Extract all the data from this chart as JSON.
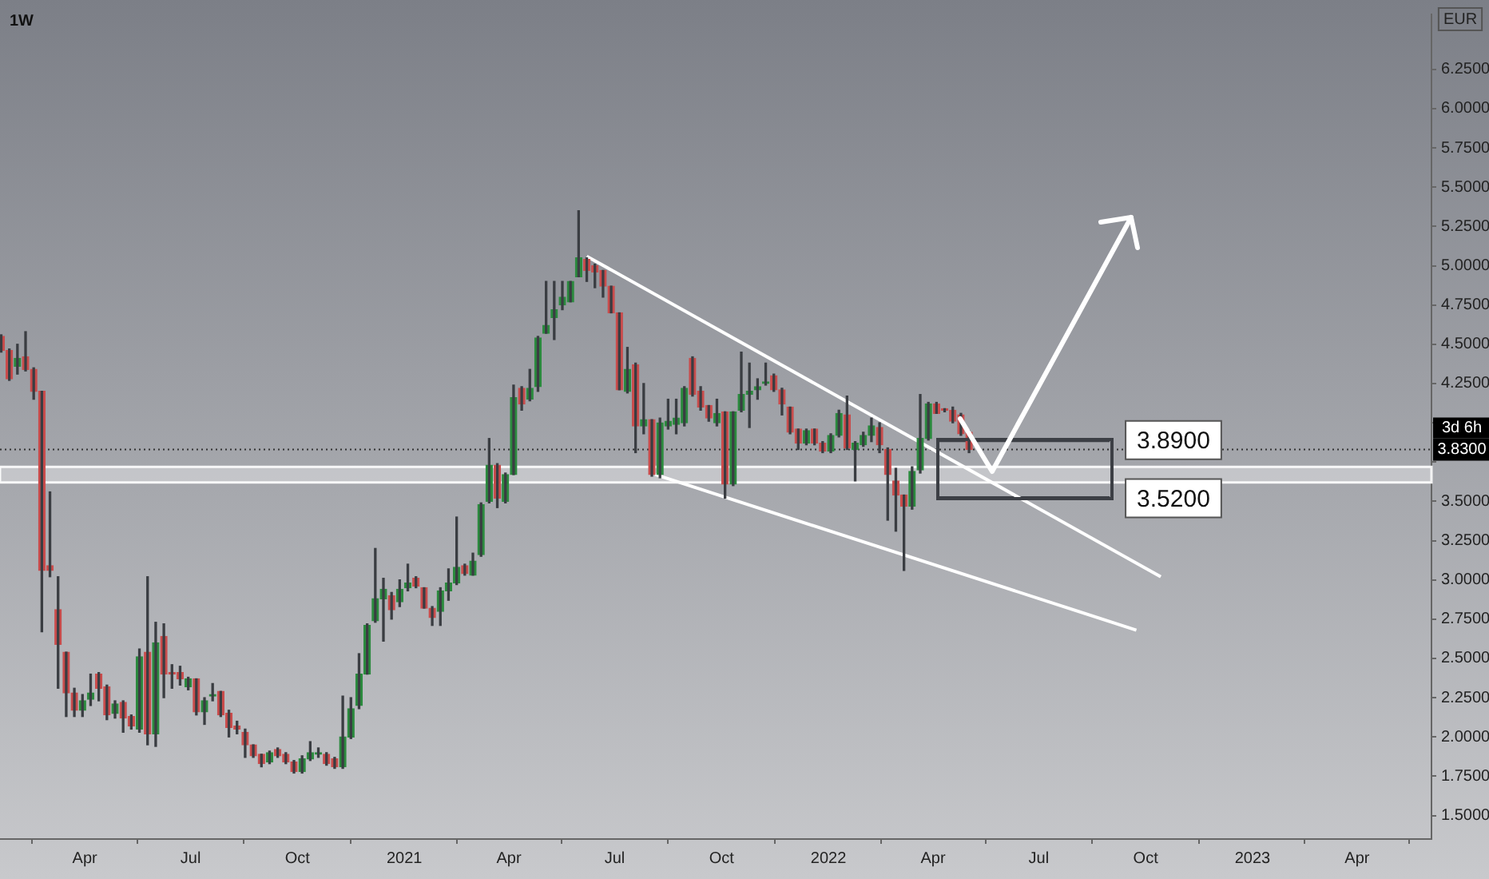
{
  "chart_data": {
    "type": "candlestick",
    "title": "1W",
    "ylabel": "EUR",
    "x": [
      "2020-01-20",
      "2020-01-27",
      "2020-02-03",
      "2020-02-10",
      "2020-02-17",
      "2020-02-24",
      "2020-03-02",
      "2020-03-09",
      "2020-03-16",
      "2020-03-23",
      "2020-03-30",
      "2020-04-06",
      "2020-04-13",
      "2020-04-20",
      "2020-04-27",
      "2020-05-04",
      "2020-05-11",
      "2020-05-18",
      "2020-05-25",
      "2020-06-01",
      "2020-06-08",
      "2020-06-15",
      "2020-06-22",
      "2020-06-29",
      "2020-07-06",
      "2020-07-13",
      "2020-07-20",
      "2020-07-27",
      "2020-08-03",
      "2020-08-10",
      "2020-08-17",
      "2020-08-24",
      "2020-08-31",
      "2020-09-07",
      "2020-09-14",
      "2020-09-21",
      "2020-09-28",
      "2020-10-05",
      "2020-10-12",
      "2020-10-19",
      "2020-10-26",
      "2020-11-02",
      "2020-11-09",
      "2020-11-16",
      "2020-11-23",
      "2020-11-30",
      "2020-12-07",
      "2020-12-14",
      "2020-12-21",
      "2020-12-28",
      "2021-01-04",
      "2021-01-11",
      "2021-01-18",
      "2021-01-25",
      "2021-02-01",
      "2021-02-08",
      "2021-02-15",
      "2021-02-22",
      "2021-03-01",
      "2021-03-08",
      "2021-03-15",
      "2021-03-22",
      "2021-03-29",
      "2021-04-05",
      "2021-04-12",
      "2021-04-19",
      "2021-04-26",
      "2021-05-03",
      "2021-05-10",
      "2021-05-17",
      "2021-05-24",
      "2021-05-31",
      "2021-06-07",
      "2021-06-14",
      "2021-06-21",
      "2021-06-28",
      "2021-07-05",
      "2021-07-12",
      "2021-07-19",
      "2021-07-26",
      "2021-08-02",
      "2021-08-09",
      "2021-08-16",
      "2021-08-23",
      "2021-08-30",
      "2021-09-06",
      "2021-09-13",
      "2021-09-20",
      "2021-09-27",
      "2021-10-04",
      "2021-10-11",
      "2021-10-18",
      "2021-10-25",
      "2021-11-01",
      "2021-11-08",
      "2021-11-15",
      "2021-11-22",
      "2021-11-29",
      "2021-12-06",
      "2021-12-13",
      "2021-12-20",
      "2021-12-27",
      "2022-01-03",
      "2022-01-10",
      "2022-01-17",
      "2022-01-24",
      "2022-01-31",
      "2022-02-07",
      "2022-02-14",
      "2022-02-21",
      "2022-02-28",
      "2022-03-07",
      "2022-03-14",
      "2022-03-21",
      "2022-03-28",
      "2022-04-04",
      "2022-04-11",
      "2022-04-18",
      "2022-04-25",
      "2022-05-02"
    ],
    "ohlc": [
      [
        4.55,
        4.56,
        4.45,
        4.46
      ],
      [
        4.46,
        4.47,
        4.27,
        4.28
      ],
      [
        4.36,
        4.5,
        4.31,
        4.41
      ],
      [
        4.42,
        4.58,
        4.33,
        4.34
      ],
      [
        4.34,
        4.35,
        4.15,
        4.2
      ],
      [
        4.2,
        4.2,
        2.67,
        3.06
      ],
      [
        3.09,
        3.56,
        3.02,
        3.06
      ],
      [
        2.81,
        3.02,
        2.31,
        2.59
      ],
      [
        2.54,
        2.54,
        2.13,
        2.28
      ],
      [
        2.28,
        2.31,
        2.13,
        2.17
      ],
      [
        2.17,
        2.27,
        2.13,
        2.23
      ],
      [
        2.24,
        2.4,
        2.2,
        2.28
      ],
      [
        2.4,
        2.41,
        2.23,
        2.31
      ],
      [
        2.32,
        2.33,
        2.11,
        2.14
      ],
      [
        2.15,
        2.23,
        2.12,
        2.21
      ],
      [
        2.22,
        2.23,
        2.03,
        2.12
      ],
      [
        2.13,
        2.14,
        2.05,
        2.07
      ],
      [
        2.05,
        2.56,
        2.03,
        2.51
      ],
      [
        2.54,
        3.02,
        1.95,
        2.02
      ],
      [
        2.02,
        2.73,
        1.94,
        2.6
      ],
      [
        2.64,
        2.72,
        2.25,
        2.4
      ],
      [
        2.41,
        2.46,
        2.31,
        2.4
      ],
      [
        2.41,
        2.45,
        2.33,
        2.37
      ],
      [
        2.32,
        2.38,
        2.3,
        2.37
      ],
      [
        2.37,
        2.37,
        2.14,
        2.16
      ],
      [
        2.16,
        2.25,
        2.08,
        2.23
      ],
      [
        2.26,
        2.34,
        2.23,
        2.27
      ],
      [
        2.29,
        2.29,
        2.13,
        2.14
      ],
      [
        2.15,
        2.17,
        2.0,
        2.06
      ],
      [
        2.07,
        2.1,
        2.02,
        2.05
      ],
      [
        2.03,
        2.05,
        1.87,
        1.95
      ],
      [
        1.95,
        1.95,
        1.87,
        1.88
      ],
      [
        1.89,
        1.89,
        1.81,
        1.83
      ],
      [
        1.84,
        1.91,
        1.83,
        1.9
      ],
      [
        1.92,
        1.93,
        1.87,
        1.88
      ],
      [
        1.89,
        1.9,
        1.83,
        1.84
      ],
      [
        1.84,
        1.85,
        1.77,
        1.78
      ],
      [
        1.78,
        1.88,
        1.77,
        1.86
      ],
      [
        1.86,
        1.97,
        1.85,
        1.9
      ],
      [
        1.89,
        1.93,
        1.87,
        1.9
      ],
      [
        1.89,
        1.9,
        1.82,
        1.83
      ],
      [
        1.86,
        1.87,
        1.8,
        1.81
      ],
      [
        1.81,
        2.26,
        1.8,
        2.0
      ],
      [
        2.0,
        2.25,
        1.99,
        2.18
      ],
      [
        2.2,
        2.53,
        2.18,
        2.4
      ],
      [
        2.4,
        2.72,
        2.4,
        2.71
      ],
      [
        2.74,
        3.2,
        2.73,
        2.88
      ],
      [
        2.88,
        3.01,
        2.61,
        2.94
      ],
      [
        2.9,
        2.92,
        2.75,
        2.81
      ],
      [
        2.86,
        3.0,
        2.83,
        2.94
      ],
      [
        2.95,
        3.1,
        2.93,
        2.98
      ],
      [
        3.01,
        3.02,
        2.95,
        2.96
      ],
      [
        2.95,
        2.95,
        2.82,
        2.82
      ],
      [
        2.82,
        2.83,
        2.71,
        2.76
      ],
      [
        2.8,
        2.95,
        2.71,
        2.93
      ],
      [
        2.93,
        3.07,
        2.87,
        2.98
      ],
      [
        2.98,
        3.4,
        2.97,
        3.08
      ],
      [
        3.09,
        3.1,
        3.03,
        3.04
      ],
      [
        3.03,
        3.17,
        3.03,
        3.12
      ],
      [
        3.16,
        3.49,
        3.15,
        3.48
      ],
      [
        3.5,
        3.9,
        3.49,
        3.73
      ],
      [
        3.73,
        3.74,
        3.46,
        3.52
      ],
      [
        3.5,
        3.68,
        3.49,
        3.67
      ],
      [
        3.67,
        4.24,
        3.67,
        4.16
      ],
      [
        4.22,
        4.23,
        4.08,
        4.12
      ],
      [
        4.15,
        4.34,
        4.14,
        4.22
      ],
      [
        4.23,
        4.55,
        4.2,
        4.54
      ],
      [
        4.57,
        4.9,
        4.57,
        4.62
      ],
      [
        4.67,
        4.9,
        4.53,
        4.72
      ],
      [
        4.75,
        4.9,
        4.72,
        4.8
      ],
      [
        4.77,
        4.9,
        4.77,
        4.9
      ],
      [
        4.93,
        5.35,
        4.93,
        5.05
      ],
      [
        5.04,
        5.05,
        4.9,
        4.97
      ],
      [
        5.0,
        5.01,
        4.86,
        4.96
      ],
      [
        4.97,
        4.97,
        4.8,
        4.87
      ],
      [
        4.87,
        4.87,
        4.7,
        4.7
      ],
      [
        4.7,
        4.7,
        4.21,
        4.21
      ],
      [
        4.2,
        4.48,
        4.19,
        4.34
      ],
      [
        4.37,
        4.38,
        3.81,
        3.98
      ],
      [
        3.98,
        4.25,
        3.93,
        4.02
      ],
      [
        4.02,
        4.02,
        3.66,
        3.67
      ],
      [
        3.67,
        4.03,
        3.65,
        4.0
      ],
      [
        3.98,
        4.15,
        3.96,
        4.01
      ],
      [
        3.99,
        4.15,
        3.93,
        4.03
      ],
      [
        4.0,
        4.23,
        3.98,
        4.22
      ],
      [
        4.41,
        4.42,
        4.17,
        4.18
      ],
      [
        4.2,
        4.23,
        4.08,
        4.1
      ],
      [
        4.11,
        4.11,
        4.01,
        4.03
      ],
      [
        4.0,
        4.15,
        3.98,
        4.06
      ],
      [
        4.07,
        4.07,
        3.52,
        3.61
      ],
      [
        3.61,
        4.07,
        3.6,
        4.07
      ],
      [
        4.08,
        4.45,
        4.07,
        4.18
      ],
      [
        4.18,
        4.38,
        3.97,
        4.2
      ],
      [
        4.21,
        4.28,
        4.15,
        4.23
      ],
      [
        4.25,
        4.38,
        4.24,
        4.26
      ],
      [
        4.3,
        4.31,
        4.2,
        4.21
      ],
      [
        4.21,
        4.22,
        4.05,
        4.12
      ],
      [
        4.1,
        4.1,
        3.93,
        3.94
      ],
      [
        3.96,
        3.96,
        3.83,
        3.87
      ],
      [
        3.87,
        3.96,
        3.86,
        3.95
      ],
      [
        3.96,
        3.96,
        3.86,
        3.87
      ],
      [
        3.87,
        3.88,
        3.81,
        3.82
      ],
      [
        3.82,
        3.93,
        3.81,
        3.92
      ],
      [
        3.92,
        4.08,
        3.91,
        4.06
      ],
      [
        4.05,
        4.17,
        3.83,
        3.84
      ],
      [
        3.83,
        3.88,
        3.63,
        3.87
      ],
      [
        3.86,
        3.94,
        3.85,
        3.92
      ],
      [
        3.92,
        4.03,
        3.88,
        3.98
      ],
      [
        3.97,
        4.0,
        3.81,
        3.86
      ],
      [
        3.83,
        3.84,
        3.38,
        3.67
      ],
      [
        3.63,
        3.71,
        3.31,
        3.54
      ],
      [
        3.54,
        3.54,
        3.06,
        3.47
      ],
      [
        3.47,
        3.72,
        3.45,
        3.69
      ],
      [
        3.7,
        4.18,
        3.68,
        3.9
      ],
      [
        3.9,
        4.13,
        3.89,
        4.12
      ],
      [
        4.12,
        4.13,
        4.06,
        4.06
      ],
      [
        4.09,
        4.09,
        4.07,
        4.08
      ],
      [
        4.08,
        4.1,
        4.0,
        4.01
      ],
      [
        4.05,
        4.06,
        3.92,
        3.93
      ],
      [
        3.94,
        3.95,
        3.81,
        3.83
      ]
    ],
    "colors": [
      "#c94c4c",
      "#c94c4c",
      "#2b8a3e",
      "#c94c4c",
      "#c94c4c",
      "#c94c4c",
      "#c94c4c",
      "#c94c4c",
      "#c94c4c",
      "#c94c4c",
      "#2b8a3e",
      "#2b8a3e",
      "#c94c4c",
      "#c94c4c",
      "#2b8a3e",
      "#c94c4c",
      "#c94c4c",
      "#2b8a3e",
      "#c94c4c",
      "#2b8a3e",
      "#c94c4c",
      "#c94c4c",
      "#c94c4c",
      "#2b8a3e",
      "#c94c4c",
      "#2b8a3e",
      "#2b8a3e",
      "#c94c4c",
      "#c94c4c",
      "#c94c4c",
      "#c94c4c",
      "#c94c4c",
      "#c94c4c",
      "#2b8a3e",
      "#c94c4c",
      "#c94c4c",
      "#c94c4c",
      "#2b8a3e",
      "#2b8a3e",
      "#2b8a3e",
      "#c94c4c",
      "#c94c4c",
      "#2b8a3e",
      "#2b8a3e",
      "#2b8a3e",
      "#2b8a3e",
      "#2b8a3e",
      "#2b8a3e",
      "#c94c4c",
      "#2b8a3e",
      "#2b8a3e",
      "#c94c4c",
      "#c94c4c",
      "#c94c4c",
      "#2b8a3e",
      "#2b8a3e",
      "#2b8a3e",
      "#c94c4c",
      "#2b8a3e",
      "#2b8a3e",
      "#2b8a3e",
      "#c94c4c",
      "#2b8a3e",
      "#2b8a3e",
      "#c94c4c",
      "#2b8a3e",
      "#2b8a3e",
      "#2b8a3e",
      "#2b8a3e",
      "#2b8a3e",
      "#2b8a3e",
      "#2b8a3e",
      "#c94c4c",
      "#c94c4c",
      "#c94c4c",
      "#c94c4c",
      "#c94c4c",
      "#2b8a3e",
      "#c94c4c",
      "#2b8a3e",
      "#c94c4c",
      "#2b8a3e",
      "#2b8a3e",
      "#2b8a3e",
      "#2b8a3e",
      "#c94c4c",
      "#c94c4c",
      "#c94c4c",
      "#2b8a3e",
      "#c94c4c",
      "#2b8a3e",
      "#2b8a3e",
      "#2b8a3e",
      "#2b8a3e",
      "#2b8a3e",
      "#c94c4c",
      "#c94c4c",
      "#c94c4c",
      "#c94c4c",
      "#2b8a3e",
      "#c94c4c",
      "#c94c4c",
      "#2b8a3e",
      "#2b8a3e",
      "#c94c4c",
      "#2b8a3e",
      "#2b8a3e",
      "#2b8a3e",
      "#c94c4c",
      "#c94c4c",
      "#c94c4c",
      "#c94c4c",
      "#2b8a3e",
      "#2b8a3e",
      "#2b8a3e",
      "#c94c4c",
      "#c94c4c",
      "#c94c4c",
      "#c94c4c",
      "#c94c4c"
    ],
    "series": [
      {
        "type": "line",
        "x": [
          "2021-06-07",
          "2022-10-14"
        ],
        "values": [
          5.06,
          3.02
        ],
        "color": "#ffffff"
      },
      {
        "type": "line",
        "x": [
          "2021-08-05",
          "2022-09-23"
        ],
        "values": [
          3.67,
          2.68
        ],
        "color": "#ffffff"
      }
    ],
    "xlim": [
      "2020-01-19",
      "2023-06-04"
    ],
    "xticks": [
      {
        "value": "2020-04-01",
        "label": "Apr"
      },
      {
        "value": "2020-07-01",
        "label": "Jul"
      },
      {
        "value": "2020-10-01",
        "label": "Oct"
      },
      {
        "value": "2021-01-01",
        "label": "2021"
      },
      {
        "value": "2021-04-01",
        "label": "Apr"
      },
      {
        "value": "2021-07-01",
        "label": "Jul"
      },
      {
        "value": "2021-10-01",
        "label": "Oct"
      },
      {
        "value": "2022-01-01",
        "label": "2022"
      },
      {
        "value": "2022-04-01",
        "label": "Apr"
      },
      {
        "value": "2022-07-01",
        "label": "Jul"
      },
      {
        "value": "2022-10-01",
        "label": "Oct"
      },
      {
        "value": "2023-01-01",
        "label": "2023"
      },
      {
        "value": "2023-04-01",
        "label": "Apr"
      }
    ],
    "ylim": [
      1.35,
      6.6
    ],
    "yticks": [
      {
        "value": 1.5,
        "label": "1.5000"
      },
      {
        "value": 1.75,
        "label": "1.7500"
      },
      {
        "value": 2,
        "label": "2.0000"
      },
      {
        "value": 2.25,
        "label": "2.2500"
      },
      {
        "value": 2.5,
        "label": "2.5000"
      },
      {
        "value": 2.75,
        "label": "2.7500"
      },
      {
        "value": 3,
        "label": "3.0000"
      },
      {
        "value": 3.25,
        "label": "3.2500"
      },
      {
        "value": 3.5,
        "label": "3.5000"
      },
      {
        "value": 3.75,
        "label": null
      },
      {
        "value": 4,
        "label": null
      },
      {
        "value": 4.25,
        "label": "4.2500"
      },
      {
        "value": 4.5,
        "label": "4.5000"
      },
      {
        "value": 4.75,
        "label": "4.7500"
      },
      {
        "value": 5,
        "label": "5.0000"
      },
      {
        "value": 5.25,
        "label": "5.2500"
      },
      {
        "value": 5.5,
        "label": "5.5000"
      },
      {
        "value": 5.75,
        "label": "5.7500"
      },
      {
        "value": 6,
        "label": "6.0000"
      },
      {
        "value": 6.25,
        "label": "6.2500"
      }
    ],
    "ref_lines": [
      {
        "axis": "y",
        "value": 3.83,
        "label": "3.8300",
        "color": "#333333",
        "line_style": "dotted"
      },
      {
        "axis": "y",
        "value": 3.89,
        "label": "3.8900",
        "color": "#3c3f45",
        "line_style": "solid"
      },
      {
        "axis": "y",
        "value": 3.52,
        "label": "3.5200",
        "color": "#3c3f45",
        "line_style": "solid"
      }
    ],
    "bands": [
      {
        "axis": "y",
        "from": 3.62,
        "to": 3.72,
        "color": "#ffffff"
      }
    ],
    "annotations": [
      "3d 6h"
    ],
    "legend": false
  }
}
